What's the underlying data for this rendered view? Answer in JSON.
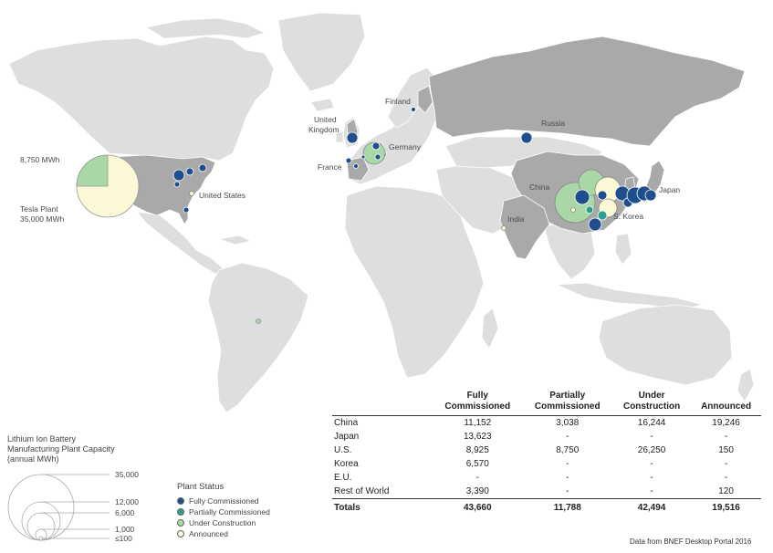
{
  "colors": {
    "ocean": "#ffffff",
    "land": "#dedede",
    "land_highlight": "#a9a9a9",
    "fully_commissioned": "#1f4e8c",
    "partially_commissioned": "#2aa18c",
    "under_construction": "#a9d8a6",
    "announced": "#fbf8d5"
  },
  "map_labels": {
    "finland": "Finland",
    "russia": "Russia",
    "united_kingdom_1": "United",
    "united_kingdom_2": "Kingdom",
    "germany": "Germany",
    "france": "France",
    "china": "China",
    "india": "India",
    "japan": "Japan",
    "s_korea": "S. Korea",
    "united_states": "United States"
  },
  "tesla_callout": {
    "partial_value": "8,750 MWh",
    "plant_name": "Tesla Plant",
    "plant_value": "35,000 MWh"
  },
  "table": {
    "headers": [
      [
        "",
        ""
      ],
      [
        "Fully",
        "Commissioned"
      ],
      [
        "Partially",
        "Commissioned"
      ],
      [
        "Under",
        "Construction"
      ],
      [
        "",
        "Announced"
      ]
    ],
    "rows": [
      {
        "country": "China",
        "values": [
          "11,152",
          "3,038",
          "16,244",
          "19,246"
        ]
      },
      {
        "country": "Japan",
        "values": [
          "13,623",
          "-",
          "-",
          "-"
        ]
      },
      {
        "country": "U.S.",
        "values": [
          "8,925",
          "8,750",
          "26,250",
          "150"
        ]
      },
      {
        "country": "Korea",
        "values": [
          "6,570",
          "-",
          "-",
          "-"
        ]
      },
      {
        "country": "E.U.",
        "values": [
          "-",
          "-",
          "-",
          "-"
        ]
      },
      {
        "country": "Rest of World",
        "values": [
          "3,390",
          "-",
          "-",
          "120"
        ]
      }
    ],
    "totals": {
      "label": "Totals",
      "values": [
        "43,660",
        "11,788",
        "42,494",
        "19,516"
      ]
    }
  },
  "capacity_legend": {
    "title_lines": [
      "Lithium Ion Battery",
      "Manufacturing Plant Capacity",
      "(annual MWh)"
    ],
    "sizes": [
      "35,000",
      "12,000",
      "6,000",
      "1,000",
      "≤100"
    ]
  },
  "status_legend": {
    "title": "Plant Status",
    "items": [
      {
        "label": "Fully Commissioned",
        "color": "#1f4e8c"
      },
      {
        "label": "Partially Commissioned",
        "color": "#2aa18c"
      },
      {
        "label": "Under Construction",
        "color": "#a9d8a6"
      },
      {
        "label": "Announced",
        "color": "#fbf8d5"
      }
    ]
  },
  "source_note": "Data from BNEF Desktop Portal 2016"
}
